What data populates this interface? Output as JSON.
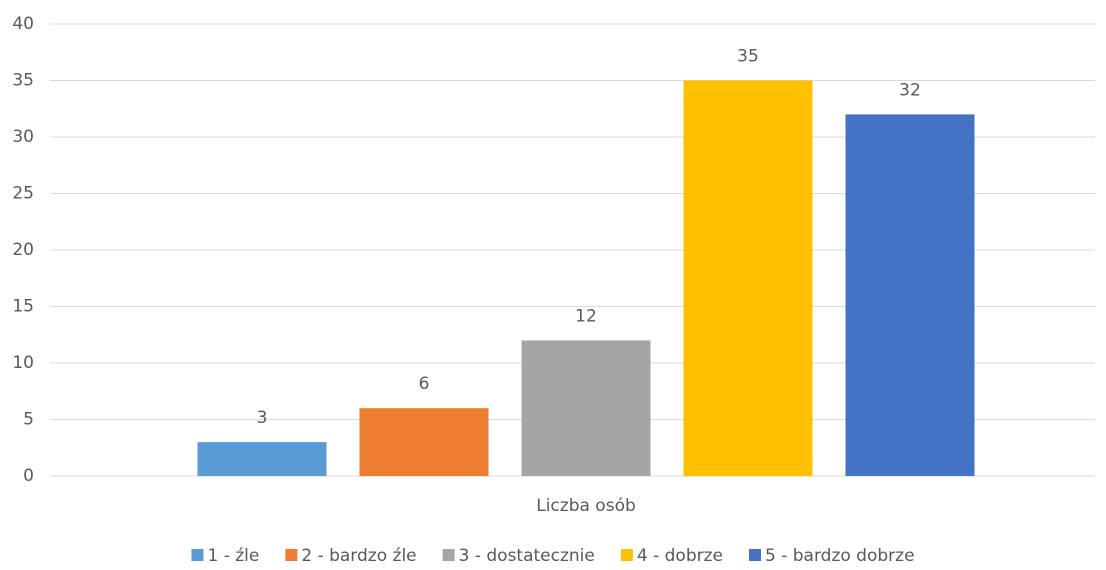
{
  "chart_data": {
    "type": "bar",
    "categories": [
      "Liczba osób"
    ],
    "series": [
      {
        "name": "1 - źle",
        "color": "#5b9bd5",
        "values": [
          3
        ]
      },
      {
        "name": "2 - bardzo źle",
        "color": "#ed7d31",
        "values": [
          6
        ]
      },
      {
        "name": "3 - dostatecznie",
        "color": "#a5a5a5",
        "values": [
          12
        ]
      },
      {
        "name": "4 - dobrze",
        "color": "#ffc000",
        "values": [
          35
        ]
      },
      {
        "name": "5 - bardzo dobrze",
        "color": "#4472c4",
        "values": [
          32
        ]
      }
    ],
    "ylim": [
      0,
      40
    ],
    "yticks": [
      0,
      5,
      10,
      15,
      20,
      25,
      30,
      35,
      40
    ],
    "grid": true,
    "legend": "bottom"
  }
}
